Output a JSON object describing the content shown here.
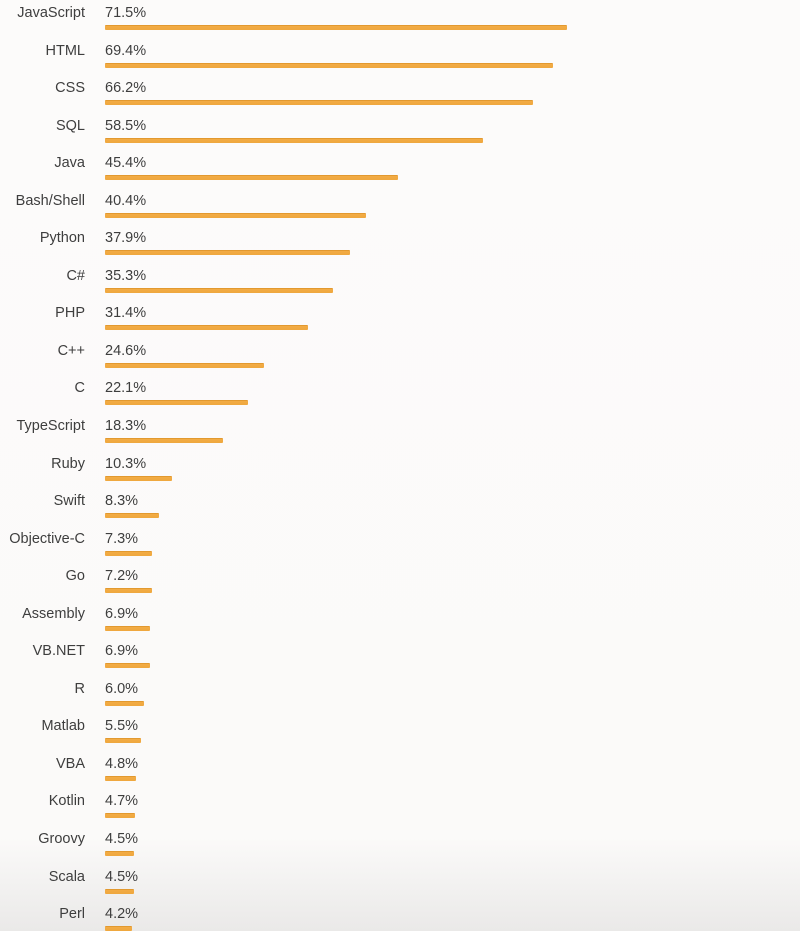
{
  "page": {
    "background_top": "#FCFBFA",
    "background_bottom": "#EAE9E8"
  },
  "chart_data": {
    "type": "bar",
    "orientation": "horizontal",
    "title": "",
    "xlabel": "",
    "ylabel": "",
    "xlim": [
      0,
      100
    ],
    "grid": false,
    "legend": null,
    "value_suffix": "%",
    "bar_color": "#EFA73E",
    "bar_edge_color": "#E2992F",
    "label_color": "#3E3E3E",
    "categories": [
      "JavaScript",
      "HTML",
      "CSS",
      "SQL",
      "Java",
      "Bash/Shell",
      "Python",
      "C#",
      "PHP",
      "C++",
      "C",
      "TypeScript",
      "Ruby",
      "Swift",
      "Objective-C",
      "Go",
      "Assembly",
      "VB.NET",
      "R",
      "Matlab",
      "VBA",
      "Kotlin",
      "Groovy",
      "Scala",
      "Perl"
    ],
    "values": [
      71.5,
      69.4,
      66.2,
      58.5,
      45.4,
      40.4,
      37.9,
      35.3,
      31.4,
      24.6,
      22.1,
      18.3,
      10.3,
      8.3,
      7.3,
      7.2,
      6.9,
      6.9,
      6.0,
      5.5,
      4.8,
      4.7,
      4.5,
      4.5,
      4.2
    ],
    "display_values": [
      "71.5%",
      "69.4%",
      "66.2%",
      "58.5%",
      "45.4%",
      "40.4%",
      "37.9%",
      "35.3%",
      "31.4%",
      "24.6%",
      "22.1%",
      "18.3%",
      "10.3%",
      "8.3%",
      "7.3%",
      "7.2%",
      "6.9%",
      "6.9%",
      "6.0%",
      "5.5%",
      "4.8%",
      "4.7%",
      "4.5%",
      "4.5%",
      "4.2%"
    ]
  }
}
